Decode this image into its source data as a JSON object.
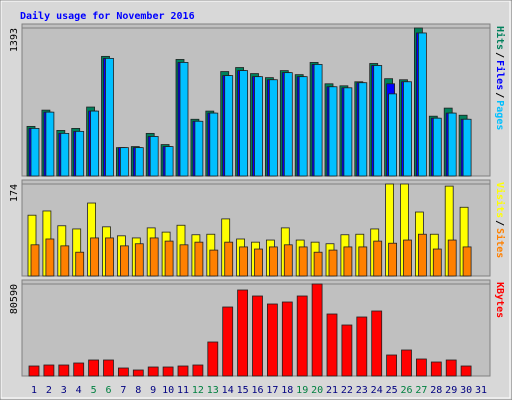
{
  "chart_data": [
    {
      "type": "bar",
      "title": "Daily usage for November 2016",
      "title_color": "#0000ff",
      "ylim": [
        0,
        1393
      ],
      "yticks": [
        1393
      ],
      "grid": true,
      "legend_separator": "/",
      "series": [
        {
          "name": "Hits",
          "color": "#00805c",
          "values": [
            467,
            620,
            429,
            448,
            649,
            1126,
            267,
            277,
            401,
            296,
            1097,
            534,
            611,
            983,
            1021,
            964,
            926,
            992,
            954,
            1069,
            868,
            849,
            887,
            1059,
            916,
            906,
            1393,
            563,
            639,
            572,
            null
          ]
        },
        {
          "name": "Files",
          "color": "#0000ff",
          "values": [
            448,
            601,
            401,
            420,
            611,
            1107,
            267,
            267,
            372,
            277,
            1069,
            515,
            592,
            945,
            992,
            935,
            906,
            973,
            935,
            1050,
            840,
            830,
            878,
            1040,
            868,
            887,
            1346,
            544,
            592,
            534,
            null
          ]
        },
        {
          "name": "Pages",
          "color": "#00c0ff",
          "values": [
            448,
            601,
            401,
            420,
            611,
            1107,
            267,
            267,
            372,
            277,
            1069,
            515,
            592,
            945,
            992,
            935,
            906,
            973,
            935,
            1050,
            840,
            830,
            878,
            1040,
            773,
            887,
            1346,
            544,
            592,
            534,
            null
          ]
        }
      ]
    },
    {
      "type": "bar",
      "ylim": [
        0,
        174
      ],
      "yticks": [
        174
      ],
      "grid": true,
      "legend_separator": "/",
      "series": [
        {
          "name": "Visits",
          "color": "#ffff00",
          "values": [
            115,
            123,
            95,
            89,
            138,
            93,
            76,
            72,
            91,
            83,
            96,
            78,
            79,
            108,
            70,
            64,
            68,
            91,
            68,
            64,
            61,
            78,
            79,
            89,
            174,
            174,
            121,
            79,
            170,
            130,
            null
          ]
        },
        {
          "name": "Sites",
          "color": "#ff8000",
          "values": [
            59,
            70,
            57,
            45,
            72,
            72,
            57,
            61,
            72,
            66,
            59,
            64,
            49,
            64,
            55,
            51,
            55,
            59,
            55,
            45,
            49,
            55,
            55,
            66,
            62,
            68,
            79,
            51,
            68,
            55,
            null
          ]
        }
      ]
    },
    {
      "type": "bar",
      "ylim": [
        0,
        80590
      ],
      "yticks": [
        80590
      ],
      "grid": true,
      "categories": [
        "1",
        "2",
        "3",
        "4",
        "5",
        "6",
        "7",
        "8",
        "9",
        "10",
        "11",
        "12",
        "13",
        "14",
        "15",
        "16",
        "17",
        "18",
        "19",
        "20",
        "21",
        "22",
        "23",
        "24",
        "25",
        "26",
        "27",
        "28",
        "29",
        "30",
        "31"
      ],
      "category_colors": [
        "#000080",
        "#000080",
        "#000080",
        "#000080",
        "#008040",
        "#008040",
        "#000080",
        "#000080",
        "#000080",
        "#000080",
        "#000080",
        "#008040",
        "#008040",
        "#000080",
        "#000080",
        "#000080",
        "#000080",
        "#000080",
        "#008040",
        "#008040",
        "#000080",
        "#000080",
        "#000080",
        "#000080",
        "#000080",
        "#008040",
        "#008040",
        "#000080",
        "#000080",
        "#000080",
        "#000080"
      ],
      "series": [
        {
          "name": "KBytes",
          "color": "#ff0000",
          "values": [
            8760,
            9636,
            9636,
            11388,
            14016,
            14016,
            7008,
            5256,
            7884,
            7884,
            8760,
            9636,
            29784,
            60444,
            75336,
            70080,
            63072,
            64824,
            70080,
            80590,
            54312,
            44676,
            51684,
            56940,
            18396,
            22776,
            14892,
            12264,
            14016,
            8760,
            null
          ]
        }
      ]
    }
  ]
}
